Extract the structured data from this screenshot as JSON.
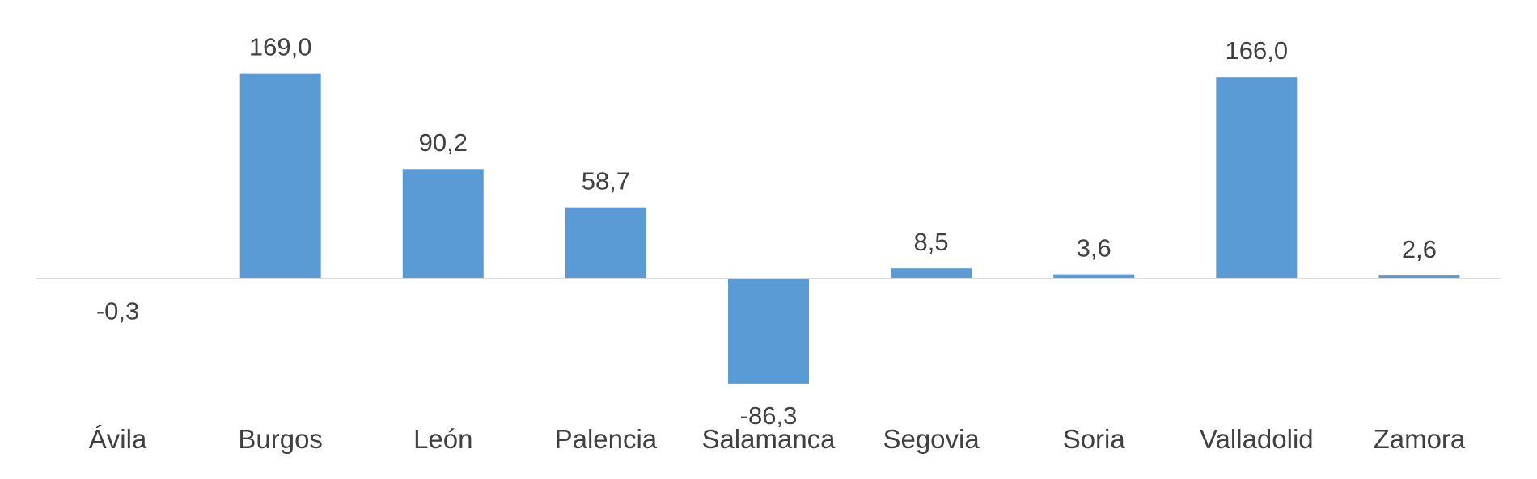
{
  "chart_data": {
    "type": "bar",
    "title": "",
    "xlabel": "",
    "ylabel": "",
    "categories": [
      "Ávila",
      "Burgos",
      "León",
      "Palencia",
      "Salamanca",
      "Segovia",
      "Soria",
      "Valladolid",
      "Zamora"
    ],
    "values": [
      -0.3,
      169.0,
      90.2,
      58.7,
      -86.3,
      8.5,
      3.6,
      166.0,
      2.6
    ],
    "value_labels": [
      "-0,3",
      "169,0",
      "90,2",
      "58,7",
      "-86,3",
      "8,5",
      "3,6",
      "166,0",
      "2,6"
    ],
    "ylim": [
      -130,
      200
    ],
    "grid": false,
    "legend": "none",
    "bar_color": "#5b9bd5",
    "baseline_color": "#d9d9d9",
    "text_color": "#404040"
  }
}
